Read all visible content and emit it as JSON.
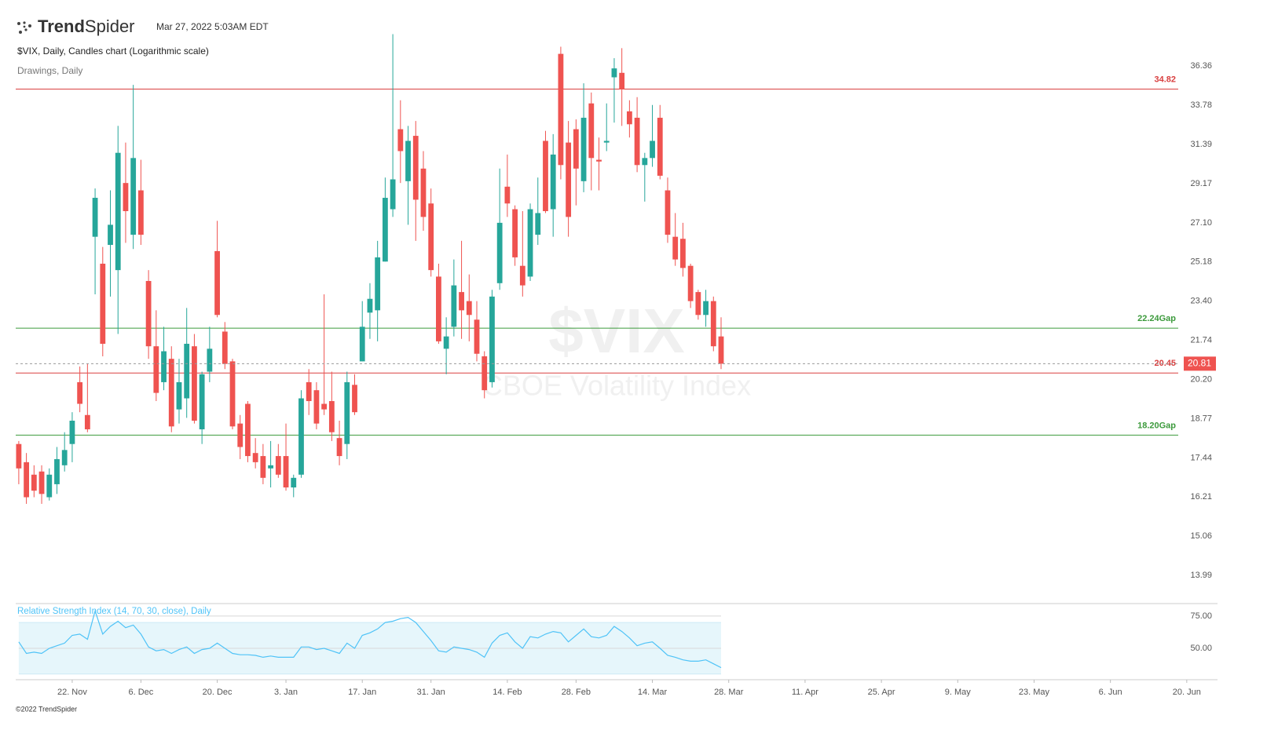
{
  "header": {
    "logo_bold": "Trend",
    "logo_light": "Spider",
    "timestamp": "Mar 27, 2022 5:03AM EDT",
    "subtitle": "$VIX, Daily, Candles chart (Logarithmic scale)",
    "drawings": "Drawings, Daily",
    "watermark_symbol": "$VIX",
    "watermark_name": "CBOE Volatility Index"
  },
  "footer": "©2022 TrendSpider",
  "chart_data": [
    {
      "type": "candlestick",
      "log_scale": true,
      "up_color": "#26a69a",
      "down_color": "#ef5350",
      "x": [
        0,
        1,
        2,
        3,
        4,
        5,
        6,
        7,
        8,
        9,
        10,
        11,
        12,
        13,
        14,
        15,
        16,
        17,
        18,
        19,
        20,
        21,
        22,
        23,
        24,
        25,
        26,
        27,
        28,
        29,
        30,
        31,
        32,
        33,
        34,
        35,
        36,
        37,
        38,
        39,
        40,
        41,
        42,
        43,
        44,
        45,
        46,
        47,
        48,
        49,
        50,
        51,
        52,
        53,
        54,
        55,
        56,
        57,
        58,
        59,
        60,
        61,
        62,
        63,
        64,
        65,
        66,
        67,
        68,
        69,
        70,
        71,
        72,
        73,
        74,
        75,
        76,
        77,
        78,
        79,
        80,
        81,
        82,
        83,
        84,
        85,
        86,
        87,
        88,
        89,
        90,
        91,
        92
      ],
      "open": [
        17.9,
        17.3,
        16.9,
        17.0,
        16.2,
        16.6,
        17.2,
        17.9,
        20.1,
        18.9,
        26.4,
        25.1,
        26.0,
        24.8,
        29.2,
        26.5,
        28.8,
        24.3,
        21.5,
        20.1,
        21.0,
        19.1,
        19.5,
        21.5,
        18.4,
        20.5,
        25.7,
        22.1,
        20.9,
        18.6,
        19.3,
        17.6,
        17.5,
        17.1,
        17.5,
        17.5,
        16.5,
        16.9,
        20.1,
        19.8,
        19.3,
        19.4,
        18.1,
        17.9,
        20.0,
        20.9,
        22.9,
        23.0,
        25.2,
        27.8,
        32.3,
        29.3,
        31.9,
        30.0,
        28.1,
        24.5,
        21.4,
        22.3,
        23.8,
        23.4,
        22.6,
        21.1,
        20.1,
        24.2,
        29.0,
        27.8,
        25.0,
        24.5,
        26.5,
        31.6,
        27.8,
        37.2,
        31.5,
        32.3,
        29.3,
        33.9,
        30.5,
        31.5,
        35.6,
        35.9,
        33.4,
        33.0,
        30.2,
        30.6,
        33.0,
        28.8,
        26.4,
        26.3,
        25.0,
        23.8,
        22.8,
        23.4,
        21.9
      ],
      "high": [
        18.0,
        17.6,
        17.2,
        17.2,
        17.1,
        17.8,
        18.3,
        19.0,
        20.7,
        20.8,
        28.9,
        25.9,
        28.8,
        32.5,
        31.5,
        35.1,
        30.5,
        24.8,
        23.0,
        22.3,
        21.5,
        21.0,
        23.1,
        22.0,
        20.5,
        22.3,
        27.2,
        22.5,
        21.0,
        18.9,
        19.4,
        18.1,
        17.9,
        18.0,
        17.9,
        18.6,
        16.9,
        19.8,
        20.6,
        20.1,
        23.7,
        20.5,
        18.7,
        20.5,
        20.4,
        23.4,
        24.2,
        26.2,
        29.5,
        38.6,
        34.1,
        32.5,
        32.8,
        31.0,
        28.9,
        25.1,
        22.7,
        25.3,
        26.2,
        24.6,
        23.4,
        21.3,
        23.9,
        30.0,
        30.8,
        28.0,
        27.7,
        28.1,
        29.5,
        32.2,
        32.0,
        37.7,
        32.8,
        32.9,
        35.2,
        34.6,
        31.8,
        33.9,
        36.9,
        37.6,
        34.1,
        34.3,
        30.9,
        33.8,
        33.8,
        29.5,
        27.6,
        27.1,
        25.1,
        23.9,
        23.9,
        23.6,
        22.7
      ],
      "low": [
        16.6,
        16.0,
        16.2,
        16.0,
        16.1,
        16.3,
        17.0,
        17.3,
        19.0,
        18.3,
        23.7,
        21.1,
        23.6,
        22.0,
        26.1,
        25.8,
        26.0,
        21.0,
        19.4,
        19.8,
        18.3,
        18.6,
        18.8,
        18.6,
        17.9,
        20.1,
        22.7,
        20.6,
        18.4,
        17.4,
        17.3,
        17.1,
        16.6,
        16.5,
        16.8,
        16.4,
        16.2,
        16.8,
        18.9,
        18.4,
        18.9,
        18.0,
        17.2,
        17.4,
        18.9,
        20.9,
        21.8,
        21.7,
        25.2,
        27.4,
        29.2,
        27.0,
        26.2,
        26.7,
        24.5,
        21.6,
        20.4,
        21.9,
        21.8,
        21.7,
        20.9,
        19.5,
        19.9,
        23.9,
        27.4,
        25.0,
        23.6,
        24.3,
        26.0,
        27.6,
        26.4,
        29.4,
        26.4,
        28.0,
        28.7,
        28.8,
        28.8,
        31.0,
        32.7,
        32.5,
        31.8,
        29.8,
        28.2,
        30.1,
        29.4,
        26.1,
        25.0,
        24.5,
        23.1,
        22.6,
        22.3,
        21.3,
        20.6
      ],
      "close": [
        17.1,
        16.2,
        16.4,
        16.3,
        16.9,
        17.4,
        17.7,
        18.7,
        19.3,
        18.4,
        28.4,
        21.6,
        27.0,
        30.9,
        27.7,
        30.6,
        26.5,
        21.5,
        19.7,
        21.3,
        18.5,
        20.1,
        21.6,
        18.7,
        20.4,
        21.4,
        22.8,
        20.8,
        18.5,
        17.8,
        17.5,
        17.3,
        16.8,
        17.2,
        16.9,
        16.5,
        16.8,
        19.5,
        19.4,
        18.6,
        19.1,
        18.3,
        17.5,
        20.1,
        19.0,
        22.3,
        23.5,
        25.4,
        28.4,
        29.4,
        31.0,
        31.6,
        28.3,
        27.4,
        24.8,
        21.7,
        21.9,
        24.1,
        23.0,
        22.8,
        21.2,
        19.8,
        23.6,
        27.1,
        28.1,
        25.4,
        24.1,
        27.8,
        27.6,
        27.7,
        30.8,
        30.2,
        27.4,
        30.0,
        33.0,
        30.6,
        30.4,
        31.6,
        36.2,
        34.8,
        32.6,
        30.2,
        30.6,
        31.6,
        29.6,
        26.5,
        25.3,
        24.9,
        23.4,
        22.8,
        23.4,
        21.5,
        20.81
      ],
      "xlim": [
        -0.4,
        156
      ],
      "xticks": [
        {
          "value": 7,
          "label": "22. Nov"
        },
        {
          "value": 16,
          "label": "6. Dec"
        },
        {
          "value": 26,
          "label": "20. Dec"
        },
        {
          "value": 35,
          "label": "3. Jan"
        },
        {
          "value": 45,
          "label": "17. Jan"
        },
        {
          "value": 54,
          "label": "31. Jan"
        },
        {
          "value": 64,
          "label": "14. Feb"
        },
        {
          "value": 73,
          "label": "28. Feb"
        },
        {
          "value": 83,
          "label": "14. Mar"
        },
        {
          "value": 93,
          "label": "28. Mar"
        },
        {
          "value": 103,
          "label": "11. Apr"
        },
        {
          "value": 113,
          "label": "25. Apr"
        },
        {
          "value": 123,
          "label": "9. May"
        },
        {
          "value": 133,
          "label": "23. May"
        },
        {
          "value": 143,
          "label": "6. Jun"
        },
        {
          "value": 153,
          "label": "20. Jun"
        }
      ],
      "ylim": [
        13.35,
        38.8
      ],
      "yticks": [
        36.36,
        33.78,
        31.39,
        29.17,
        {
          "value": 27.1,
          "label": "27.10"
        },
        25.18,
        {
          "value": 23.4,
          "label": "23.40"
        },
        21.74,
        {
          "value": 20.2,
          "label": "20.20"
        },
        18.77,
        17.44,
        16.21,
        15.06,
        13.99
      ],
      "levels": [
        {
          "value": 34.82,
          "label": "34.82",
          "color": "#d94040"
        },
        {
          "value": 22.24,
          "label": "22.24Gap",
          "color": "#3c9a3c"
        },
        {
          "value": 20.45,
          "label": "20.45",
          "color": "#d94040"
        },
        {
          "value": 18.2,
          "label": "18.20Gap",
          "color": "#3c9a3c"
        }
      ]
    },
    {
      "type": "line",
      "title": "Relative Strength Index (14, 70, 30, close), Daily",
      "color": "#4fc3f7",
      "band": [
        30,
        70
      ],
      "band_color": "#e6f6fb",
      "x": [
        0,
        1,
        2,
        3,
        4,
        5,
        6,
        7,
        8,
        9,
        10,
        11,
        12,
        13,
        14,
        15,
        16,
        17,
        18,
        19,
        20,
        21,
        22,
        23,
        24,
        25,
        26,
        27,
        28,
        29,
        30,
        31,
        32,
        33,
        34,
        35,
        36,
        37,
        38,
        39,
        40,
        41,
        42,
        43,
        44,
        45,
        46,
        47,
        48,
        49,
        50,
        51,
        52,
        53,
        54,
        55,
        56,
        57,
        58,
        59,
        60,
        61,
        62,
        63,
        64,
        65,
        66,
        67,
        68,
        69,
        70,
        71,
        72,
        73,
        74,
        75,
        76,
        77,
        78,
        79,
        80,
        81,
        82,
        83,
        84,
        85,
        86,
        87,
        88,
        89,
        90,
        91,
        92
      ],
      "values": [
        55,
        46,
        47,
        46,
        50,
        52,
        54,
        60,
        61,
        57,
        79,
        61,
        67,
        71,
        66,
        68,
        61,
        51,
        48,
        49,
        46,
        49,
        51,
        46,
        49,
        50,
        54,
        50,
        46,
        45,
        45,
        44.5,
        43,
        44,
        43,
        43,
        43,
        51,
        51,
        49,
        50,
        48,
        46,
        54,
        50,
        60,
        62,
        65,
        70,
        71,
        73,
        74,
        70,
        63,
        56,
        48,
        47,
        51,
        50,
        49,
        47,
        43,
        54,
        60,
        62,
        55,
        50,
        59,
        58,
        61,
        63,
        62,
        55,
        60,
        65,
        59,
        58,
        60,
        67,
        63,
        58,
        52,
        54,
        55,
        50,
        44.5,
        43,
        41,
        40,
        40,
        41,
        38,
        35
      ],
      "ylim": [
        25.6,
        84.1
      ],
      "yticks": [
        {
          "value": 75,
          "label": "75.00"
        },
        {
          "value": 50,
          "label": "50.00"
        }
      ]
    }
  ]
}
